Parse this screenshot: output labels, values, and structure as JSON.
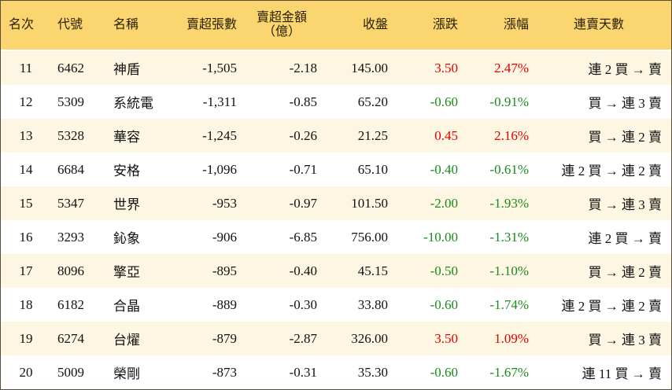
{
  "table": {
    "columns": [
      "名次",
      "代號",
      "名稱",
      "賣超張數",
      "賣超金額\n（億）",
      "收盤",
      "漲跌",
      "漲幅",
      "連賣天數"
    ],
    "rows": [
      [
        "11",
        "6462",
        "神盾",
        "-1,505",
        "-2.18",
        "145.00",
        "3.50",
        "2.47%",
        "連 2 買 → 賣"
      ],
      [
        "12",
        "5309",
        "系統電",
        "-1,311",
        "-0.85",
        "65.20",
        "-0.60",
        "-0.91%",
        "買 → 連 3 賣"
      ],
      [
        "13",
        "5328",
        "華容",
        "-1,245",
        "-0.26",
        "21.25",
        "0.45",
        "2.16%",
        "買 → 連 2 賣"
      ],
      [
        "14",
        "6684",
        "安格",
        "-1,096",
        "-0.71",
        "65.10",
        "-0.40",
        "-0.61%",
        "連 2 買 → 連 2 賣"
      ],
      [
        "15",
        "5347",
        "世界",
        "-953",
        "-0.97",
        "101.50",
        "-2.00",
        "-1.93%",
        "買 → 連 3 賣"
      ],
      [
        "16",
        "3293",
        "鈊象",
        "-906",
        "-6.85",
        "756.00",
        "-10.00",
        "-1.31%",
        "連 2 買 → 賣"
      ],
      [
        "17",
        "8096",
        "擎亞",
        "-895",
        "-0.40",
        "45.15",
        "-0.50",
        "-1.10%",
        "買 → 連 2 賣"
      ],
      [
        "18",
        "6182",
        "合晶",
        "-889",
        "-0.30",
        "33.80",
        "-0.60",
        "-1.74%",
        "連 2 買 → 連 2 賣"
      ],
      [
        "19",
        "6274",
        "台燿",
        "-879",
        "-2.87",
        "326.00",
        "3.50",
        "1.09%",
        "買 → 連 3 賣"
      ],
      [
        "20",
        "5009",
        "榮剛",
        "-873",
        "-0.31",
        "35.30",
        "-0.60",
        "-1.67%",
        "連 11 買 → 賣"
      ]
    ]
  }
}
